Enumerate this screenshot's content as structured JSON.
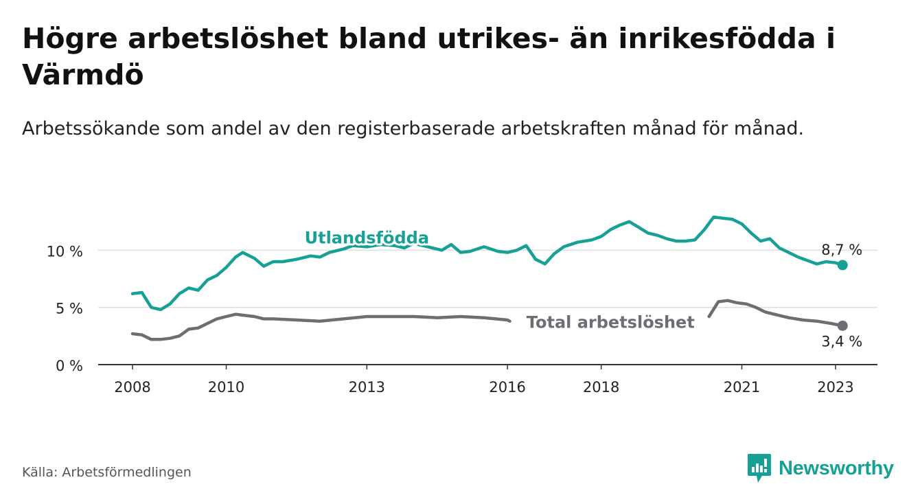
{
  "title": "Högre arbetslöshet bland utrikes- än inrikesfödda i Värmdö",
  "subtitle": "Arbetssökande som andel av den registerbaserade arbetskraften månad för månad.",
  "source": "Källa: Arbetsförmedlingen",
  "brand": "Newsworthy",
  "colors": {
    "foreign": "#16a096",
    "total": "#6e6d73",
    "axis": "#333333",
    "grid": "#dddddd",
    "brand": "#16a096"
  },
  "chart_data": {
    "type": "line",
    "title": "Högre arbetslöshet bland utrikes- än inrikesfödda i Värmdö",
    "xlabel": "",
    "ylabel": "",
    "ylim": [
      0,
      14
    ],
    "xlim": [
      2007.5,
      2024.0
    ],
    "y_ticks": [
      0,
      5,
      10
    ],
    "y_tick_labels": [
      "0 %",
      "5 %",
      "10 %"
    ],
    "x_ticks": [
      2008,
      2010,
      2013,
      2016,
      2018,
      2021,
      2023
    ],
    "x_tick_labels": [
      "2008",
      "2010",
      "2013",
      "2016",
      "2018",
      "2021",
      "2023"
    ],
    "grid": true,
    "series": [
      {
        "name": "Utlandsfödda",
        "label": "Utlandsfödda",
        "end_label": "8,7 %",
        "x": [
          2008.0,
          2008.2,
          2008.4,
          2008.6,
          2008.8,
          2009.0,
          2009.2,
          2009.4,
          2009.6,
          2009.8,
          2010.0,
          2010.2,
          2010.35,
          2010.6,
          2010.8,
          2011.0,
          2011.2,
          2011.5,
          2011.8,
          2012.0,
          2012.2,
          2012.5,
          2012.7,
          2013.0,
          2013.3,
          2013.6,
          2013.8,
          2014.0,
          2014.3,
          2014.6,
          2014.8,
          2015.0,
          2015.2,
          2015.5,
          2015.8,
          2016.0,
          2016.2,
          2016.4,
          2016.6,
          2016.8,
          2017.0,
          2017.2,
          2017.5,
          2017.8,
          2018.0,
          2018.2,
          2018.4,
          2018.6,
          2018.8,
          2019.0,
          2019.2,
          2019.4,
          2019.6,
          2019.8,
          2020.0,
          2020.2,
          2020.4,
          2020.6,
          2020.8,
          2021.0,
          2021.2,
          2021.4,
          2021.6,
          2021.8,
          2022.0,
          2022.2,
          2022.4,
          2022.6,
          2022.8,
          2023.0,
          2023.15
        ],
        "values": [
          6.2,
          6.3,
          5.0,
          4.8,
          5.3,
          6.2,
          6.7,
          6.5,
          7.4,
          7.8,
          8.5,
          9.4,
          9.8,
          9.3,
          8.6,
          9.0,
          9.0,
          9.2,
          9.5,
          9.4,
          9.8,
          10.1,
          10.4,
          10.3,
          10.5,
          10.4,
          10.2,
          10.6,
          10.3,
          10.0,
          10.5,
          9.8,
          9.9,
          10.3,
          9.9,
          9.8,
          10.0,
          10.4,
          9.2,
          8.8,
          9.7,
          10.3,
          10.7,
          10.9,
          11.2,
          11.8,
          12.2,
          12.5,
          12.0,
          11.5,
          11.3,
          11.0,
          10.8,
          10.8,
          10.9,
          11.8,
          12.9,
          12.8,
          12.7,
          12.3,
          11.5,
          10.8,
          11.0,
          10.2,
          9.8,
          9.4,
          9.1,
          8.8,
          9.0,
          8.9,
          8.7
        ]
      },
      {
        "name": "Total arbetslöshet",
        "label": "Total arbetslöshet",
        "end_label": "3,4 %",
        "x": [
          2008.0,
          2008.2,
          2008.4,
          2008.6,
          2008.8,
          2009.0,
          2009.2,
          2009.4,
          2009.6,
          2009.8,
          2010.0,
          2010.2,
          2010.4,
          2010.6,
          2010.8,
          2011.0,
          2011.5,
          2012.0,
          2012.5,
          2013.0,
          2013.5,
          2014.0,
          2014.5,
          2015.0,
          2015.5,
          2016.0,
          2016.05,
          null,
          2020.3,
          2020.5,
          2020.7,
          2020.9,
          2021.1,
          2021.3,
          2021.5,
          2021.8,
          2022.0,
          2022.3,
          2022.6,
          2022.9,
          2023.15
        ],
        "values": [
          2.7,
          2.6,
          2.2,
          2.2,
          2.3,
          2.5,
          3.1,
          3.2,
          3.6,
          4.0,
          4.2,
          4.4,
          4.3,
          4.2,
          4.0,
          4.0,
          3.9,
          3.8,
          4.0,
          4.2,
          4.2,
          4.2,
          4.1,
          4.2,
          4.1,
          3.9,
          3.8,
          null,
          4.2,
          5.5,
          5.6,
          5.4,
          5.3,
          5.0,
          4.6,
          4.3,
          4.1,
          3.9,
          3.8,
          3.6,
          3.4
        ]
      }
    ]
  }
}
